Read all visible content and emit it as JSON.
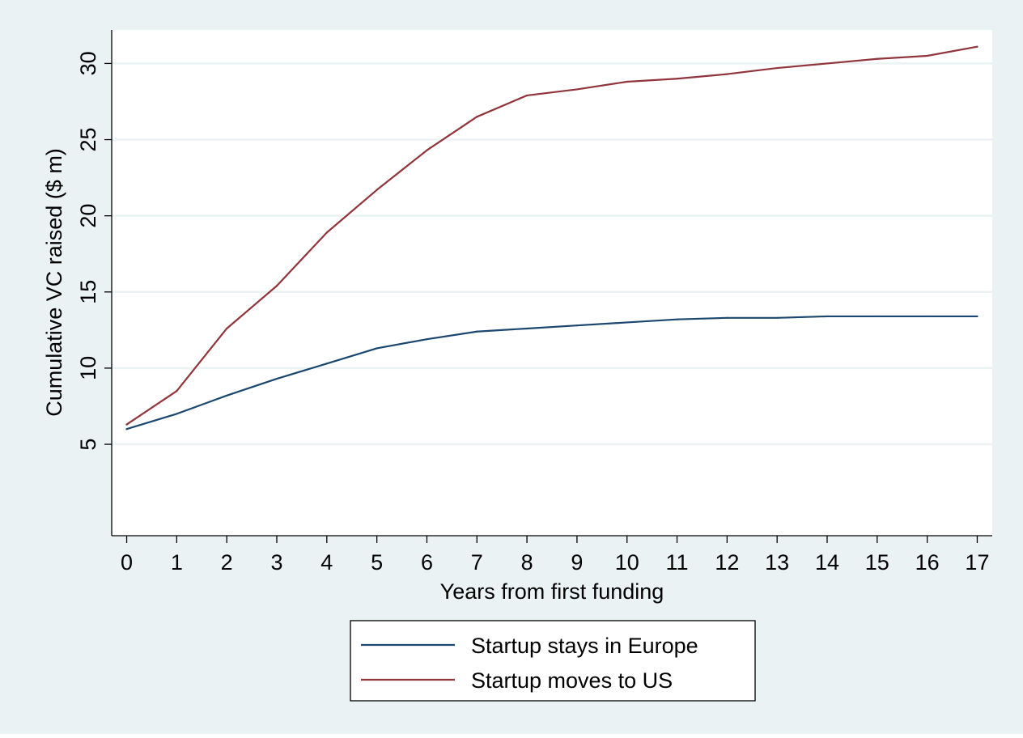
{
  "chart_data": {
    "type": "line",
    "title": "",
    "xlabel": "Years from first funding",
    "ylabel": "Cumulative VC raised ($ m)",
    "x": [
      0,
      1,
      2,
      3,
      4,
      5,
      6,
      7,
      8,
      9,
      10,
      11,
      12,
      13,
      14,
      15,
      16,
      17
    ],
    "xlim": [
      -0.3,
      17.3
    ],
    "ylim": [
      -1,
      32.2
    ],
    "xticks": [
      "0",
      "1",
      "2",
      "3",
      "4",
      "5",
      "6",
      "7",
      "8",
      "9",
      "10",
      "11",
      "12",
      "13",
      "14",
      "15",
      "16",
      "17"
    ],
    "yticks": [
      5,
      10,
      15,
      20,
      25,
      30
    ],
    "grid": "horizontal",
    "legend_position": "bottom",
    "series": [
      {
        "name": "Startup stays in Europe",
        "color": "#1a476f",
        "values": [
          6.0,
          7.0,
          8.2,
          9.3,
          10.3,
          11.3,
          11.9,
          12.4,
          12.6,
          12.8,
          13.0,
          13.2,
          13.3,
          13.3,
          13.4,
          13.4,
          13.4,
          13.4
        ]
      },
      {
        "name": "Startup moves to US",
        "color": "#90353b",
        "values": [
          6.3,
          8.5,
          12.6,
          15.4,
          18.9,
          21.7,
          24.3,
          26.5,
          27.9,
          28.3,
          28.8,
          29.0,
          29.3,
          29.7,
          30.0,
          30.3,
          30.5,
          31.1
        ]
      }
    ],
    "colors": {
      "background": "#eaf2f3",
      "plot_area": "#ffffff",
      "gridline": "#eaf2f3"
    }
  }
}
